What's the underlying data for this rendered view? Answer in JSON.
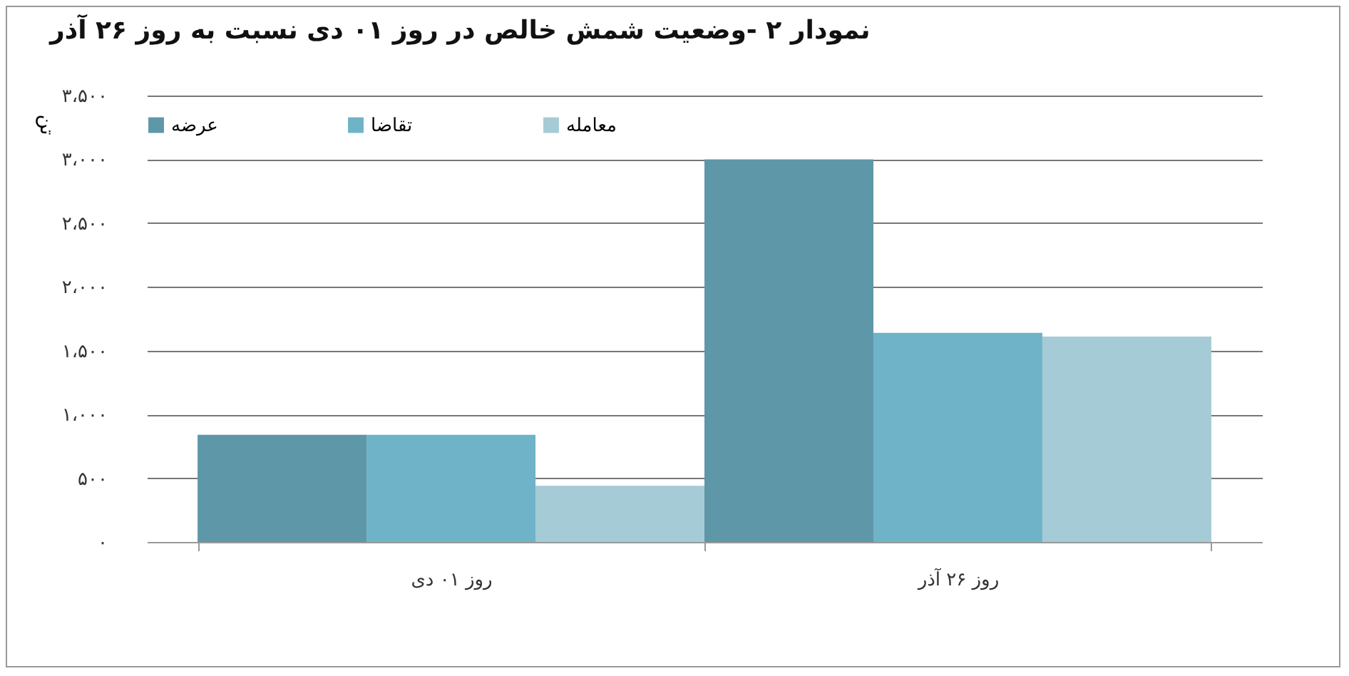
{
  "chart_data": {
    "type": "bar",
    "title": "نمودار ۲ -وضعیت شمش خالص در روز ۰۱ دی نسبت به روز ۲۶ آذر",
    "ylabel": "تن",
    "categories": [
      "روز ۰۱ دی",
      "روز ۲۶ آذر"
    ],
    "series": [
      {
        "name": "عرضه",
        "color": "#5e97a8",
        "values": [
          840,
          3000
        ]
      },
      {
        "name": "تقاضا",
        "color": "#6fb3c8",
        "values": [
          840,
          1640
        ]
      },
      {
        "name": "معامله",
        "color": "#a5cbd6",
        "values": [
          440,
          1610
        ]
      }
    ],
    "ylim": [
      0,
      3500
    ],
    "yticks": [
      {
        "value": 0,
        "label": "۰"
      },
      {
        "value": 500,
        "label": "۵۰۰"
      },
      {
        "value": 1000,
        "label": "۱،۰۰۰"
      },
      {
        "value": 1500,
        "label": "۱،۵۰۰"
      },
      {
        "value": 2000,
        "label": "۲،۰۰۰"
      },
      {
        "value": 2500,
        "label": "۲،۵۰۰"
      },
      {
        "value": 3000,
        "label": "۳،۰۰۰"
      },
      {
        "value": 3500,
        "label": "۳،۵۰۰"
      }
    ],
    "grid": "y",
    "legend": "top"
  }
}
